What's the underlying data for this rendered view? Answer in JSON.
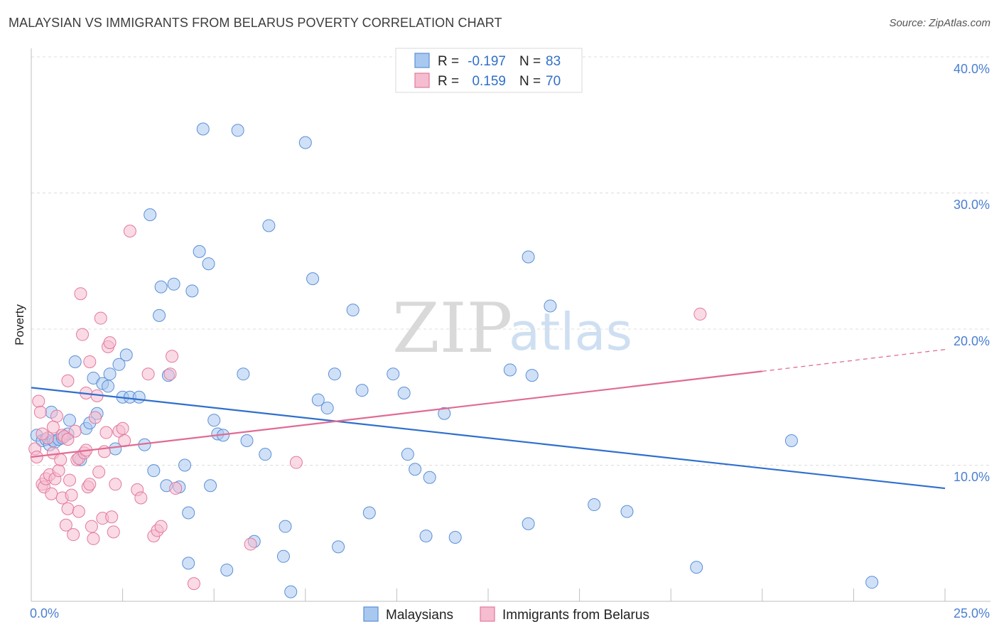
{
  "chart_data": {
    "type": "scatter",
    "title": "MALAYSIAN VS IMMIGRANTS FROM BELARUS POVERTY CORRELATION CHART",
    "source": "Source: ZipAtlas.com",
    "ylabel": "Poverty",
    "xlim": [
      0,
      25
    ],
    "ylim": [
      0,
      40
    ],
    "x_tick_labels": [
      "0.0%",
      "25.0%"
    ],
    "y_ticks": [
      10,
      20,
      30,
      40
    ],
    "y_tick_labels": [
      "10.0%",
      "20.0%",
      "30.0%",
      "40.0%"
    ],
    "watermark": {
      "zip": "ZIP",
      "atlas": "atlas"
    },
    "legend": [
      {
        "r_label": "R =",
        "r_value": "-0.197",
        "n_label": "N =",
        "n_value": "83"
      },
      {
        "r_label": "R =",
        "r_value": "0.159",
        "n_label": "N =",
        "n_value": "70"
      }
    ],
    "series": [
      {
        "name": "Malaysians",
        "color": "#a9c8f0",
        "stroke": "#5b8fd6",
        "trend": {
          "x0": 0,
          "y0": 15.7,
          "x1": 25,
          "y1": 8.3,
          "color": "#2f6fce"
        },
        "points": [
          [
            0.15,
            12.2
          ],
          [
            0.3,
            11.8
          ],
          [
            0.4,
            11.9
          ],
          [
            0.5,
            11.5
          ],
          [
            0.55,
            13.9
          ],
          [
            0.6,
            11.8
          ],
          [
            0.65,
            11.7
          ],
          [
            0.75,
            11.9
          ],
          [
            0.85,
            12.0
          ],
          [
            1.0,
            12.3
          ],
          [
            1.05,
            13.3
          ],
          [
            1.2,
            17.6
          ],
          [
            1.35,
            10.4
          ],
          [
            1.5,
            12.7
          ],
          [
            1.6,
            13.1
          ],
          [
            1.7,
            16.4
          ],
          [
            1.8,
            13.8
          ],
          [
            1.95,
            16.0
          ],
          [
            2.1,
            15.8
          ],
          [
            2.15,
            16.7
          ],
          [
            2.3,
            11.2
          ],
          [
            2.4,
            17.4
          ],
          [
            2.5,
            15.0
          ],
          [
            2.6,
            18.1
          ],
          [
            2.7,
            15.0
          ],
          [
            2.95,
            15.0
          ],
          [
            3.1,
            11.5
          ],
          [
            3.25,
            28.4
          ],
          [
            3.35,
            9.6
          ],
          [
            3.5,
            21.0
          ],
          [
            3.55,
            23.1
          ],
          [
            3.7,
            8.5
          ],
          [
            3.75,
            16.6
          ],
          [
            3.9,
            23.3
          ],
          [
            4.05,
            8.4
          ],
          [
            4.2,
            10.0
          ],
          [
            4.3,
            6.5
          ],
          [
            4.3,
            2.8
          ],
          [
            4.4,
            22.8
          ],
          [
            4.6,
            25.7
          ],
          [
            4.7,
            34.7
          ],
          [
            4.85,
            24.8
          ],
          [
            4.9,
            8.5
          ],
          [
            5.0,
            13.3
          ],
          [
            5.1,
            12.3
          ],
          [
            5.25,
            12.2
          ],
          [
            5.35,
            2.3
          ],
          [
            5.65,
            34.6
          ],
          [
            5.8,
            16.7
          ],
          [
            5.9,
            11.8
          ],
          [
            6.1,
            4.4
          ],
          [
            6.4,
            10.8
          ],
          [
            6.5,
            27.6
          ],
          [
            6.9,
            3.3
          ],
          [
            6.95,
            5.5
          ],
          [
            7.1,
            0.7
          ],
          [
            7.5,
            33.7
          ],
          [
            7.7,
            23.7
          ],
          [
            7.85,
            14.8
          ],
          [
            8.1,
            14.2
          ],
          [
            8.3,
            16.7
          ],
          [
            8.4,
            4.0
          ],
          [
            8.8,
            21.4
          ],
          [
            9.05,
            15.5
          ],
          [
            9.25,
            6.5
          ],
          [
            9.9,
            16.7
          ],
          [
            10.2,
            15.3
          ],
          [
            10.3,
            10.8
          ],
          [
            10.5,
            9.7
          ],
          [
            10.8,
            4.8
          ],
          [
            10.9,
            9.1
          ],
          [
            11.3,
            13.8
          ],
          [
            11.6,
            4.7
          ],
          [
            13.1,
            17.0
          ],
          [
            13.6,
            5.7
          ],
          [
            13.7,
            16.6
          ],
          [
            13.6,
            25.3
          ],
          [
            14.2,
            21.7
          ],
          [
            15.4,
            7.1
          ],
          [
            16.3,
            6.6
          ],
          [
            18.2,
            2.5
          ],
          [
            20.8,
            11.8
          ],
          [
            23.0,
            1.4
          ]
        ]
      },
      {
        "name": "Immigrants from Belarus",
        "color": "#f6bcd0",
        "stroke": "#e2799d",
        "trend": {
          "x0": 0,
          "y0": 10.6,
          "x1": 20,
          "y1": 16.9,
          "dash_x1": 25,
          "dash_y1": 18.5,
          "color": "#e06b93"
        },
        "points": [
          [
            0.1,
            11.2
          ],
          [
            0.15,
            10.6
          ],
          [
            0.2,
            14.7
          ],
          [
            0.25,
            13.9
          ],
          [
            0.3,
            8.6
          ],
          [
            0.35,
            8.4
          ],
          [
            0.4,
            9.0
          ],
          [
            0.45,
            12.0
          ],
          [
            0.5,
            9.3
          ],
          [
            0.55,
            7.9
          ],
          [
            0.6,
            10.9
          ],
          [
            0.65,
            9.0
          ],
          [
            0.7,
            13.6
          ],
          [
            0.75,
            9.6
          ],
          [
            0.8,
            10.4
          ],
          [
            0.85,
            7.6
          ],
          [
            0.85,
            12.2
          ],
          [
            0.9,
            12.1
          ],
          [
            0.95,
            5.6
          ],
          [
            1.0,
            16.2
          ],
          [
            1.0,
            6.8
          ],
          [
            1.05,
            8.9
          ],
          [
            1.1,
            7.8
          ],
          [
            1.15,
            4.9
          ],
          [
            1.2,
            12.5
          ],
          [
            1.25,
            10.4
          ],
          [
            1.3,
            10.5
          ],
          [
            1.3,
            6.6
          ],
          [
            1.35,
            22.6
          ],
          [
            1.4,
            19.6
          ],
          [
            1.45,
            10.9
          ],
          [
            1.5,
            11.1
          ],
          [
            1.5,
            15.3
          ],
          [
            1.55,
            8.4
          ],
          [
            1.6,
            8.6
          ],
          [
            1.6,
            17.6
          ],
          [
            1.65,
            5.5
          ],
          [
            1.7,
            4.6
          ],
          [
            1.75,
            13.5
          ],
          [
            1.8,
            15.1
          ],
          [
            1.85,
            9.5
          ],
          [
            1.9,
            20.8
          ],
          [
            1.95,
            6.1
          ],
          [
            2.0,
            11.0
          ],
          [
            2.05,
            12.4
          ],
          [
            2.1,
            18.7
          ],
          [
            2.15,
            19.0
          ],
          [
            2.2,
            6.2
          ],
          [
            2.25,
            5.1
          ],
          [
            2.3,
            8.6
          ],
          [
            2.4,
            12.5
          ],
          [
            2.5,
            12.7
          ],
          [
            2.55,
            11.8
          ],
          [
            2.7,
            27.2
          ],
          [
            2.9,
            8.2
          ],
          [
            3.0,
            7.6
          ],
          [
            3.2,
            16.7
          ],
          [
            3.35,
            4.8
          ],
          [
            3.45,
            5.2
          ],
          [
            3.55,
            5.5
          ],
          [
            3.8,
            16.7
          ],
          [
            3.85,
            18.0
          ],
          [
            3.95,
            8.3
          ],
          [
            4.45,
            1.3
          ],
          [
            6.0,
            4.2
          ],
          [
            7.25,
            10.2
          ],
          [
            18.3,
            21.1
          ],
          [
            0.3,
            12.3
          ],
          [
            1.0,
            11.9
          ],
          [
            0.6,
            12.8
          ]
        ]
      }
    ]
  }
}
